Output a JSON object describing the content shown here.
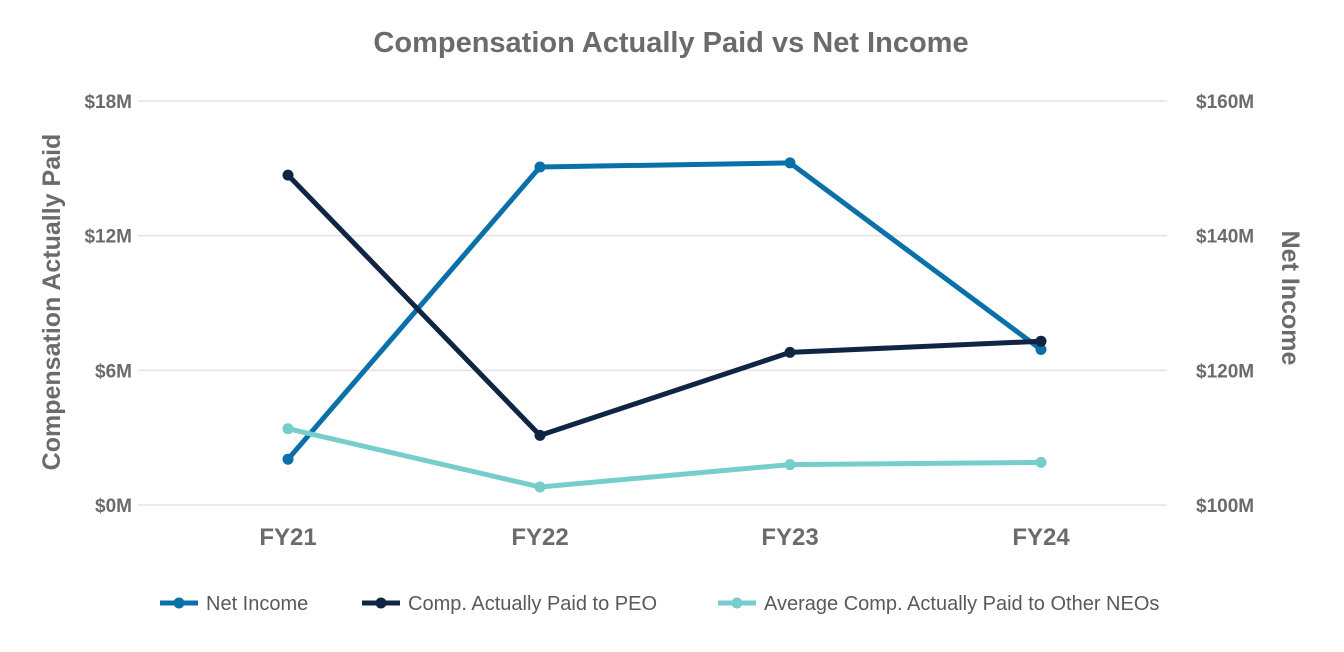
{
  "chart_data": {
    "type": "line",
    "title": "Compensation Actually Paid vs Net Income",
    "categories": [
      "FY21",
      "FY22",
      "FY23",
      "FY24"
    ],
    "ylabel": "Compensation Actually Paid",
    "y2label": "Net Income",
    "ylim": [
      0,
      18
    ],
    "y2lim": [
      100,
      160
    ],
    "yticks": [
      {
        "value": 0,
        "label": "$0M"
      },
      {
        "value": 6,
        "label": "$6M"
      },
      {
        "value": 12,
        "label": "$12M"
      },
      {
        "value": 18,
        "label": "$18M"
      }
    ],
    "y2ticks": [
      {
        "value": 100,
        "label": "$100M"
      },
      {
        "value": 120,
        "label": "$120M"
      },
      {
        "value": 140,
        "label": "$140M"
      },
      {
        "value": 160,
        "label": "$160M"
      }
    ],
    "grid": true,
    "legend_position": "bottom",
    "series": [
      {
        "name": "Net Income",
        "axis": "right",
        "unit": "$M",
        "values": [
          106.8,
          150.2,
          150.8,
          123.1
        ],
        "color": "#0a70aa"
      },
      {
        "name": "Comp. Actually Paid to PEO",
        "axis": "left",
        "unit": "$M",
        "values": [
          14.7,
          3.1,
          6.8,
          7.3
        ],
        "color": "#102544"
      },
      {
        "name": "Average Comp. Actually Paid to Other NEOs",
        "axis": "left",
        "unit": "$M",
        "values": [
          3.4,
          0.8,
          1.8,
          1.9
        ],
        "color": "#77cdcc"
      }
    ]
  }
}
